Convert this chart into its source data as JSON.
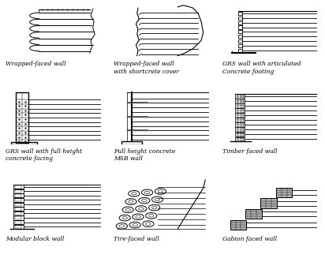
{
  "background_color": "#ffffff",
  "figsize": [
    4.12,
    3.32
  ],
  "dpi": 100,
  "all_captions": [
    "Wrapped-faced wall",
    "Wrapped-faced wall\nwith shortcrete cover",
    "GRS wall with articulated\nConcrete footing",
    "GRS wall with full height\nconcrete facing",
    "Full height concrete\nMSB wall",
    "Timber faced wall",
    "Modular block wall",
    "Tire-faced wall",
    "Gabion faced wall"
  ],
  "caption_fontsize": 5.5,
  "caption_style": "italic",
  "text_color": "#000000",
  "grid_rows": 3,
  "grid_cols": 3
}
